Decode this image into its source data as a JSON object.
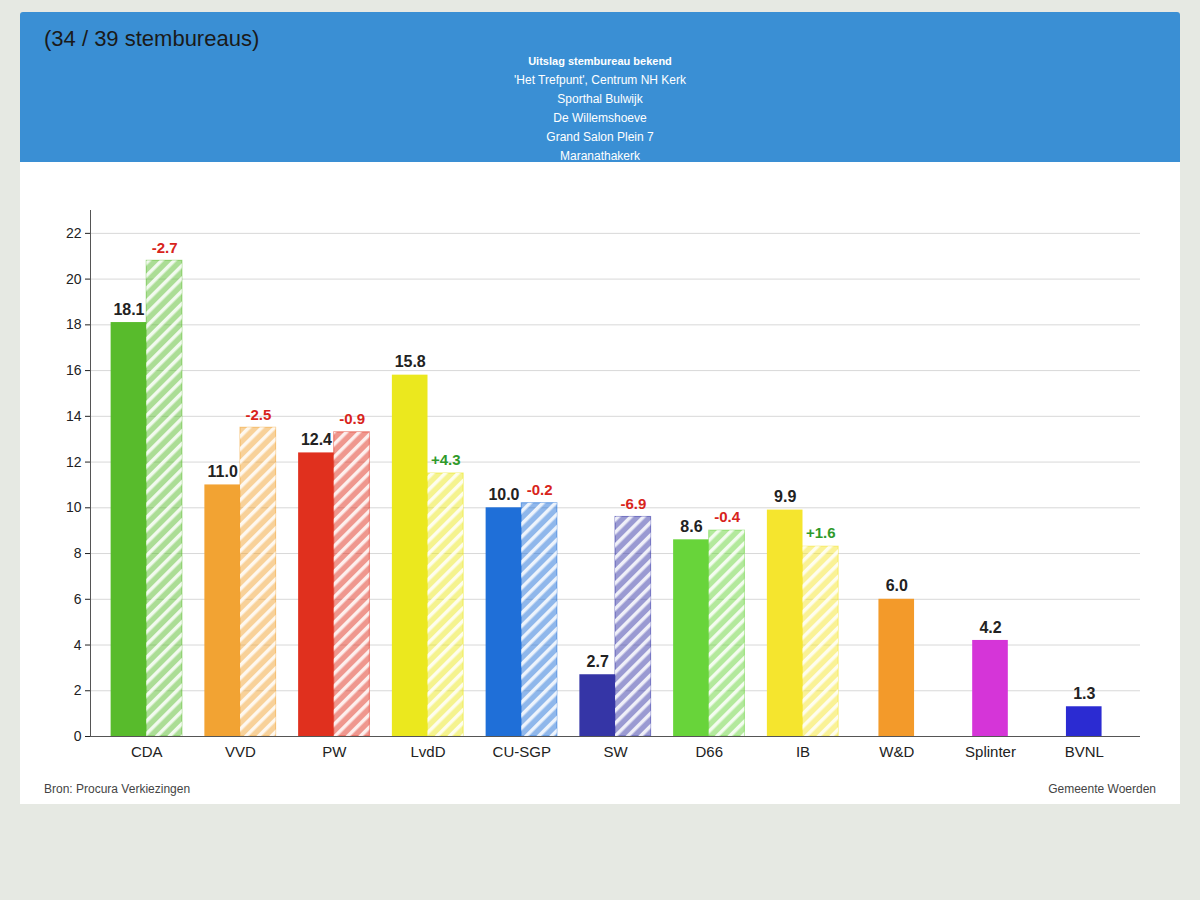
{
  "chart_data": {
    "type": "bar",
    "subtitle": "(34 / 39 stembureaus)",
    "notice": {
      "title": "Uitslag stembureau bekend",
      "lines": [
        "'Het Trefpunt', Centrum NH Kerk",
        "Sporthal Bulwijk",
        "De Willemshoeve",
        "Grand Salon Plein 7",
        "Maranathakerk"
      ]
    },
    "categories": [
      "CDA",
      "VVD",
      "PW",
      "LvdD",
      "CU-SGP",
      "SW",
      "D66",
      "IB",
      "W&D",
      "Splinter",
      "BVNL"
    ],
    "series": [
      {
        "values": [
          18.1,
          11.0,
          12.4,
          15.8,
          10.0,
          2.7,
          8.6,
          9.9,
          6.0,
          4.2,
          1.3
        ],
        "value_labels": [
          "18.1",
          "11.0",
          "12.4",
          "15.8",
          "10.0",
          "2.7",
          "8.6",
          "9.9",
          "6.0",
          "4.2",
          "1.3"
        ],
        "colors": [
          "#58bb2c",
          "#f2a333",
          "#e0301e",
          "#ebe81e",
          "#1f6fd8",
          "#3535a6",
          "#68d43a",
          "#f5e52e",
          "#f39a2a",
          "#d535d8",
          "#2b2bd2"
        ],
        "data_labels": true
      },
      {
        "values": [
          20.8,
          13.5,
          13.3,
          11.5,
          10.2,
          9.6,
          9.0,
          8.3,
          null,
          null,
          null
        ],
        "colors": [
          "#58bb2c",
          "#f2a333",
          "#e0301e",
          "#ebe81e",
          "#1f6fd8",
          "#3535a6",
          "#68d43a",
          "#f5e52e",
          null,
          null,
          null
        ],
        "changes": [
          -2.7,
          -2.5,
          -0.9,
          4.3,
          -0.2,
          -6.9,
          -0.4,
          1.6,
          null,
          null,
          null
        ],
        "change_labels": [
          "-2.7",
          "-2.5",
          "-0.9",
          "+4.3",
          "-0.2",
          "-6.9",
          "-0.4",
          "+1.6",
          null,
          null,
          null
        ]
      }
    ],
    "ylim": [
      0,
      23
    ],
    "yticks": [
      0,
      2,
      4,
      6,
      8,
      10,
      12,
      14,
      16,
      18,
      20,
      22
    ],
    "grid": true,
    "source": "Bron: Procura Verkiezingen",
    "credit": "Gemeente Woerden"
  }
}
